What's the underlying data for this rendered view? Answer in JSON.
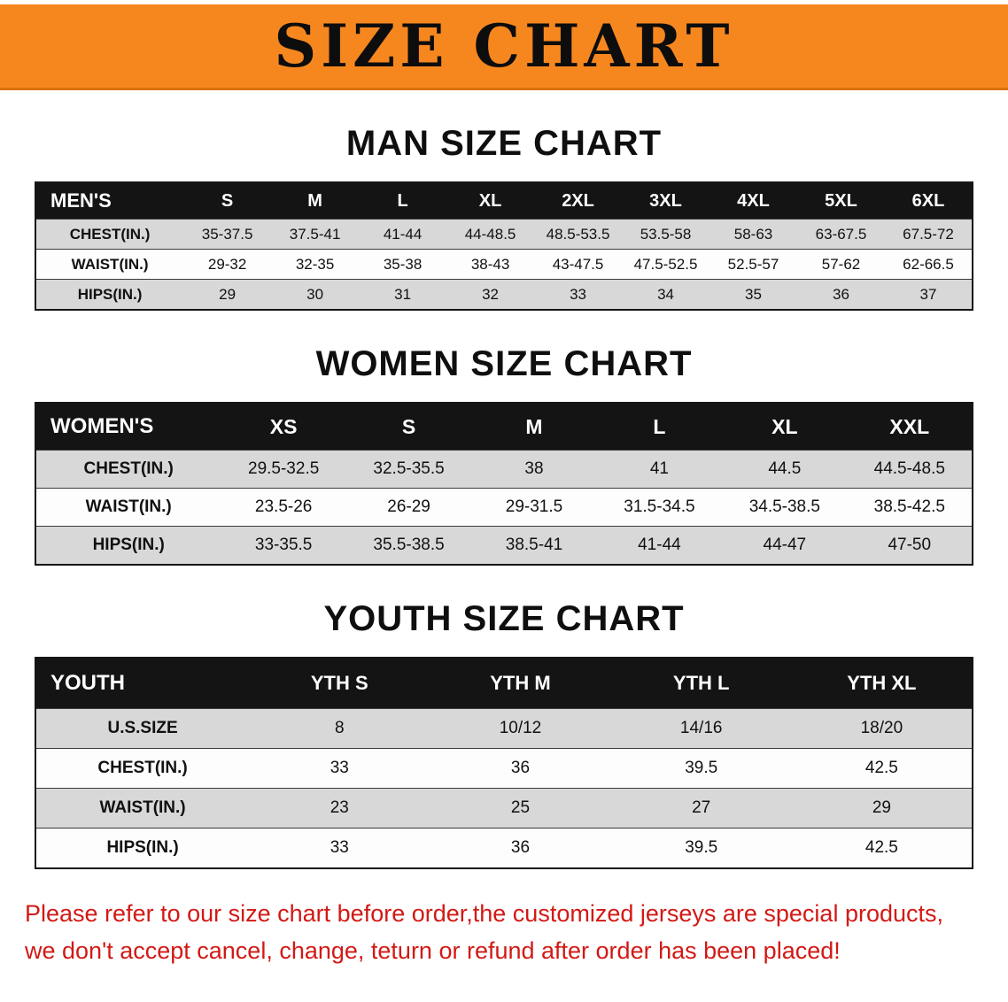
{
  "banner": {
    "title": "SIZE CHART"
  },
  "colors": {
    "banner_bg": "#f6871f",
    "table_header_bg": "#141414",
    "row_alt_gray": "#d8d8d8",
    "footer_text_red": "#d21915"
  },
  "sections": [
    {
      "id": "men",
      "heading": "MAN SIZE CHART",
      "table": {
        "header": [
          "MEN'S",
          "S",
          "M",
          "L",
          "XL",
          "2XL",
          "3XL",
          "4XL",
          "5XL",
          "6XL"
        ],
        "rows": [
          [
            "CHEST(IN.)",
            "35-37.5",
            "37.5-41",
            "41-44",
            "44-48.5",
            "48.5-53.5",
            "53.5-58",
            "58-63",
            "63-67.5",
            "67.5-72"
          ],
          [
            "WAIST(IN.)",
            "29-32",
            "32-35",
            "35-38",
            "38-43",
            "43-47.5",
            "47.5-52.5",
            "52.5-57",
            "57-62",
            "62-66.5"
          ],
          [
            "HIPS(IN.)",
            "29",
            "30",
            "31",
            "32",
            "33",
            "34",
            "35",
            "36",
            "37"
          ]
        ]
      }
    },
    {
      "id": "women",
      "heading": "WOMEN SIZE CHART",
      "table": {
        "header": [
          "WOMEN'S",
          "XS",
          "S",
          "M",
          "L",
          "XL",
          "XXL"
        ],
        "rows": [
          [
            "CHEST(IN.)",
            "29.5-32.5",
            "32.5-35.5",
            "38",
            "41",
            "44.5",
            "44.5-48.5"
          ],
          [
            "WAIST(IN.)",
            "23.5-26",
            "26-29",
            "29-31.5",
            "31.5-34.5",
            "34.5-38.5",
            "38.5-42.5"
          ],
          [
            "HIPS(IN.)",
            "33-35.5",
            "35.5-38.5",
            "38.5-41",
            "41-44",
            "44-47",
            "47-50"
          ]
        ]
      }
    },
    {
      "id": "youth",
      "heading": "YOUTH SIZE CHART",
      "table": {
        "header": [
          "YOUTH",
          "YTH S",
          "YTH M",
          "YTH L",
          "YTH XL"
        ],
        "rows": [
          [
            "U.S.SIZE",
            "8",
            "10/12",
            "14/16",
            "18/20"
          ],
          [
            "CHEST(IN.)",
            "33",
            "36",
            "39.5",
            "42.5"
          ],
          [
            "WAIST(IN.)",
            "23",
            "25",
            "27",
            "29"
          ],
          [
            "HIPS(IN.)",
            "33",
            "36",
            "39.5",
            "42.5"
          ]
        ]
      }
    }
  ],
  "footer": {
    "line1": "Please refer to our size chart before order,the customized jerseys are special products,",
    "line2": "we don't accept cancel, change, teturn or refund after order has been placed!"
  }
}
